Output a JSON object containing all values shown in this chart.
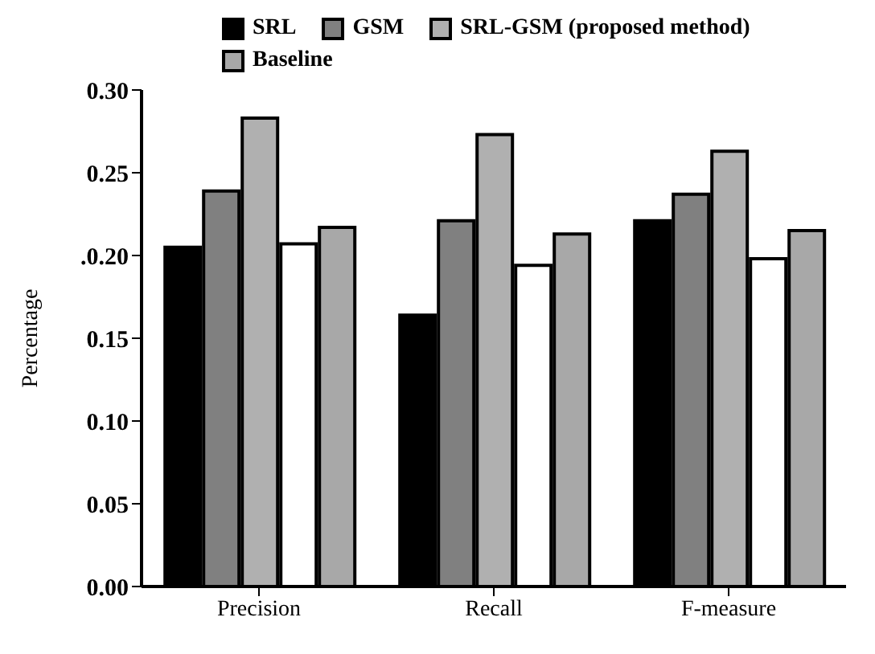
{
  "chart_data": {
    "type": "bar",
    "ylabel": "Percentage",
    "categories": [
      "Precision",
      "Recall",
      "F-measure"
    ],
    "series": [
      {
        "name": "SRL",
        "color": "#000000",
        "values": [
          0.205,
          0.164,
          0.221
        ]
      },
      {
        "name": "GSM",
        "color": "#808080",
        "values": [
          0.239,
          0.221,
          0.237
        ]
      },
      {
        "name": "SRL-GSM (proposed method)",
        "color": "#b0b0b0",
        "values": [
          0.283,
          0.273,
          0.263
        ]
      },
      {
        "color": "#ffffff",
        "values": [
          0.207,
          0.194,
          0.198
        ]
      },
      {
        "name": "Baseline",
        "color": "#a8a8a8",
        "values": [
          0.217,
          0.213,
          0.215
        ]
      }
    ],
    "ylim": [
      0,
      0.3
    ],
    "yticks": [
      {
        "value": 0,
        "label": "0.00"
      },
      0.05,
      {
        "value": 0.1,
        "label": "0.10"
      },
      0.15,
      {
        "value": 0.2,
        "label": ".0.20"
      },
      0.25,
      {
        "value": 0.3,
        "label": "0.30"
      }
    ],
    "grid": false,
    "legend": "top"
  }
}
